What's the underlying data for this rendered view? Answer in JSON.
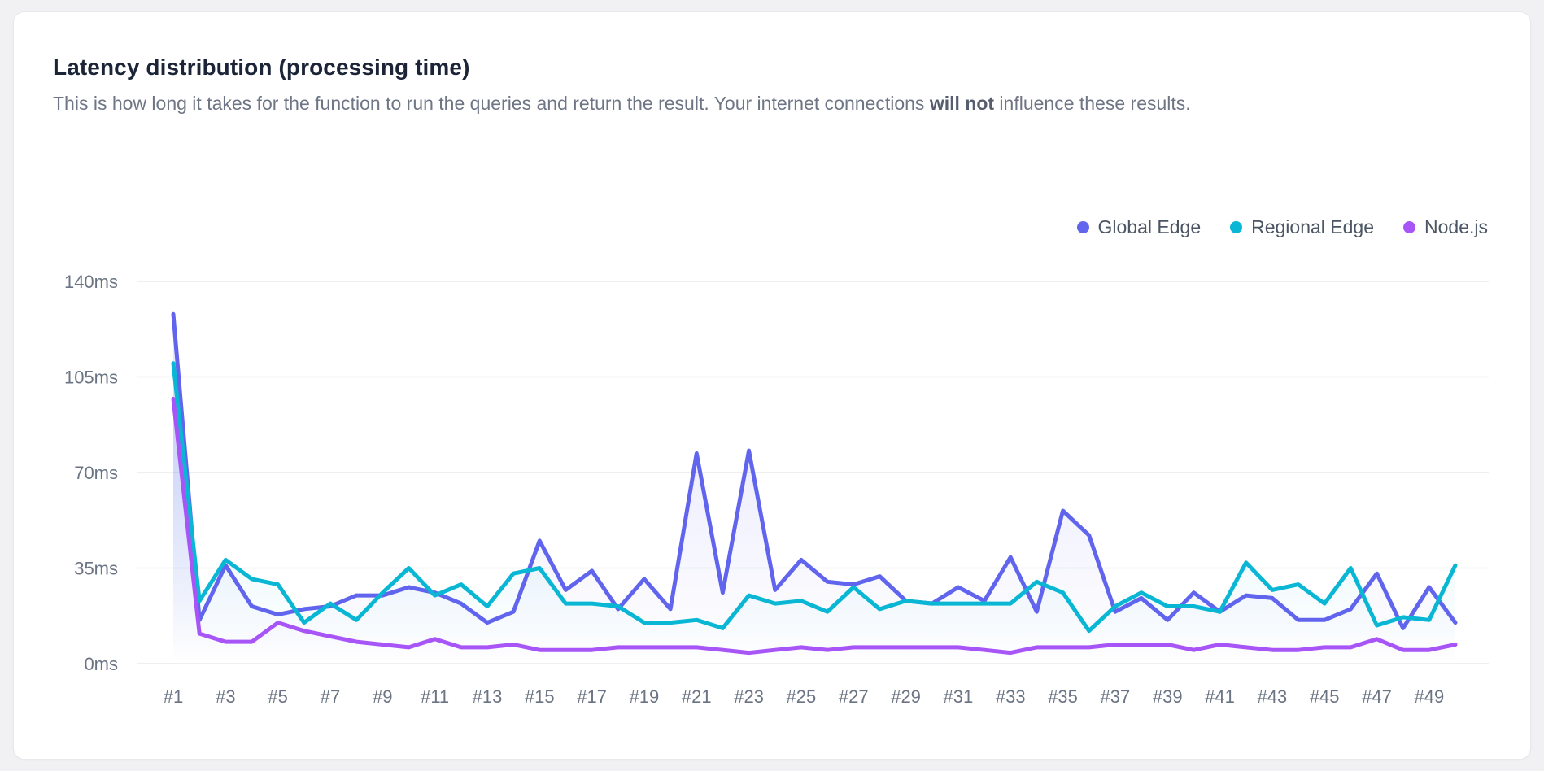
{
  "card": {
    "title": "Latency distribution (processing time)",
    "subtitle_before": "This is how long it takes for the function to run the queries and return the result. Your internet connections ",
    "subtitle_bold": "will not",
    "subtitle_after": " influence these results."
  },
  "chart_data": {
    "type": "line",
    "title": "Latency distribution (processing time)",
    "x_categories": [
      "#1",
      "#2",
      "#3",
      "#4",
      "#5",
      "#6",
      "#7",
      "#8",
      "#9",
      "#10",
      "#11",
      "#12",
      "#13",
      "#14",
      "#15",
      "#16",
      "#17",
      "#18",
      "#19",
      "#20",
      "#21",
      "#22",
      "#23",
      "#24",
      "#25",
      "#26",
      "#27",
      "#28",
      "#29",
      "#30",
      "#31",
      "#32",
      "#33",
      "#34",
      "#35",
      "#36",
      "#37",
      "#38",
      "#39",
      "#40",
      "#41",
      "#42",
      "#43",
      "#44",
      "#45",
      "#46",
      "#47",
      "#48",
      "#49",
      "#50"
    ],
    "x_tick_every": 2,
    "y_unit": "ms",
    "y_ticks": [
      0,
      35,
      70,
      105,
      140
    ],
    "ylim": [
      0,
      140
    ],
    "grid": "horizontal",
    "legend_position": "top-right",
    "colors": {
      "grid": "#e9eaee",
      "axis_text": "#6b7484",
      "area_fade_opacity_top": 0.2
    },
    "series": [
      {
        "name": "Global Edge",
        "color": "#6165ee",
        "values": [
          128,
          16,
          36,
          21,
          18,
          20,
          21,
          25,
          25,
          28,
          26,
          22,
          15,
          19,
          45,
          27,
          34,
          20,
          31,
          20,
          77,
          26,
          78,
          27,
          38,
          30,
          29,
          32,
          23,
          22,
          28,
          23,
          39,
          19,
          56,
          47,
          19,
          24,
          16,
          26,
          19,
          25,
          24,
          16,
          16,
          20,
          33,
          13,
          28,
          15
        ]
      },
      {
        "name": "Regional Edge",
        "color": "#09b7d4",
        "values": [
          110,
          23,
          38,
          31,
          29,
          15,
          22,
          16,
          26,
          35,
          25,
          29,
          21,
          33,
          35,
          22,
          22,
          21,
          15,
          15,
          16,
          13,
          25,
          22,
          23,
          19,
          28,
          20,
          23,
          22,
          22,
          22,
          22,
          30,
          26,
          12,
          21,
          26,
          21,
          21,
          19,
          37,
          27,
          29,
          22,
          35,
          14,
          17,
          16,
          36
        ]
      },
      {
        "name": "Node.js",
        "color": "#a855f7",
        "values": [
          97,
          11,
          8,
          8,
          15,
          12,
          10,
          8,
          7,
          6,
          9,
          6,
          6,
          7,
          5,
          5,
          5,
          6,
          6,
          6,
          6,
          5,
          4,
          5,
          6,
          5,
          6,
          6,
          6,
          6,
          6,
          5,
          4,
          6,
          6,
          6,
          7,
          7,
          7,
          5,
          7,
          6,
          5,
          5,
          6,
          6,
          9,
          5,
          5,
          7
        ]
      }
    ]
  }
}
